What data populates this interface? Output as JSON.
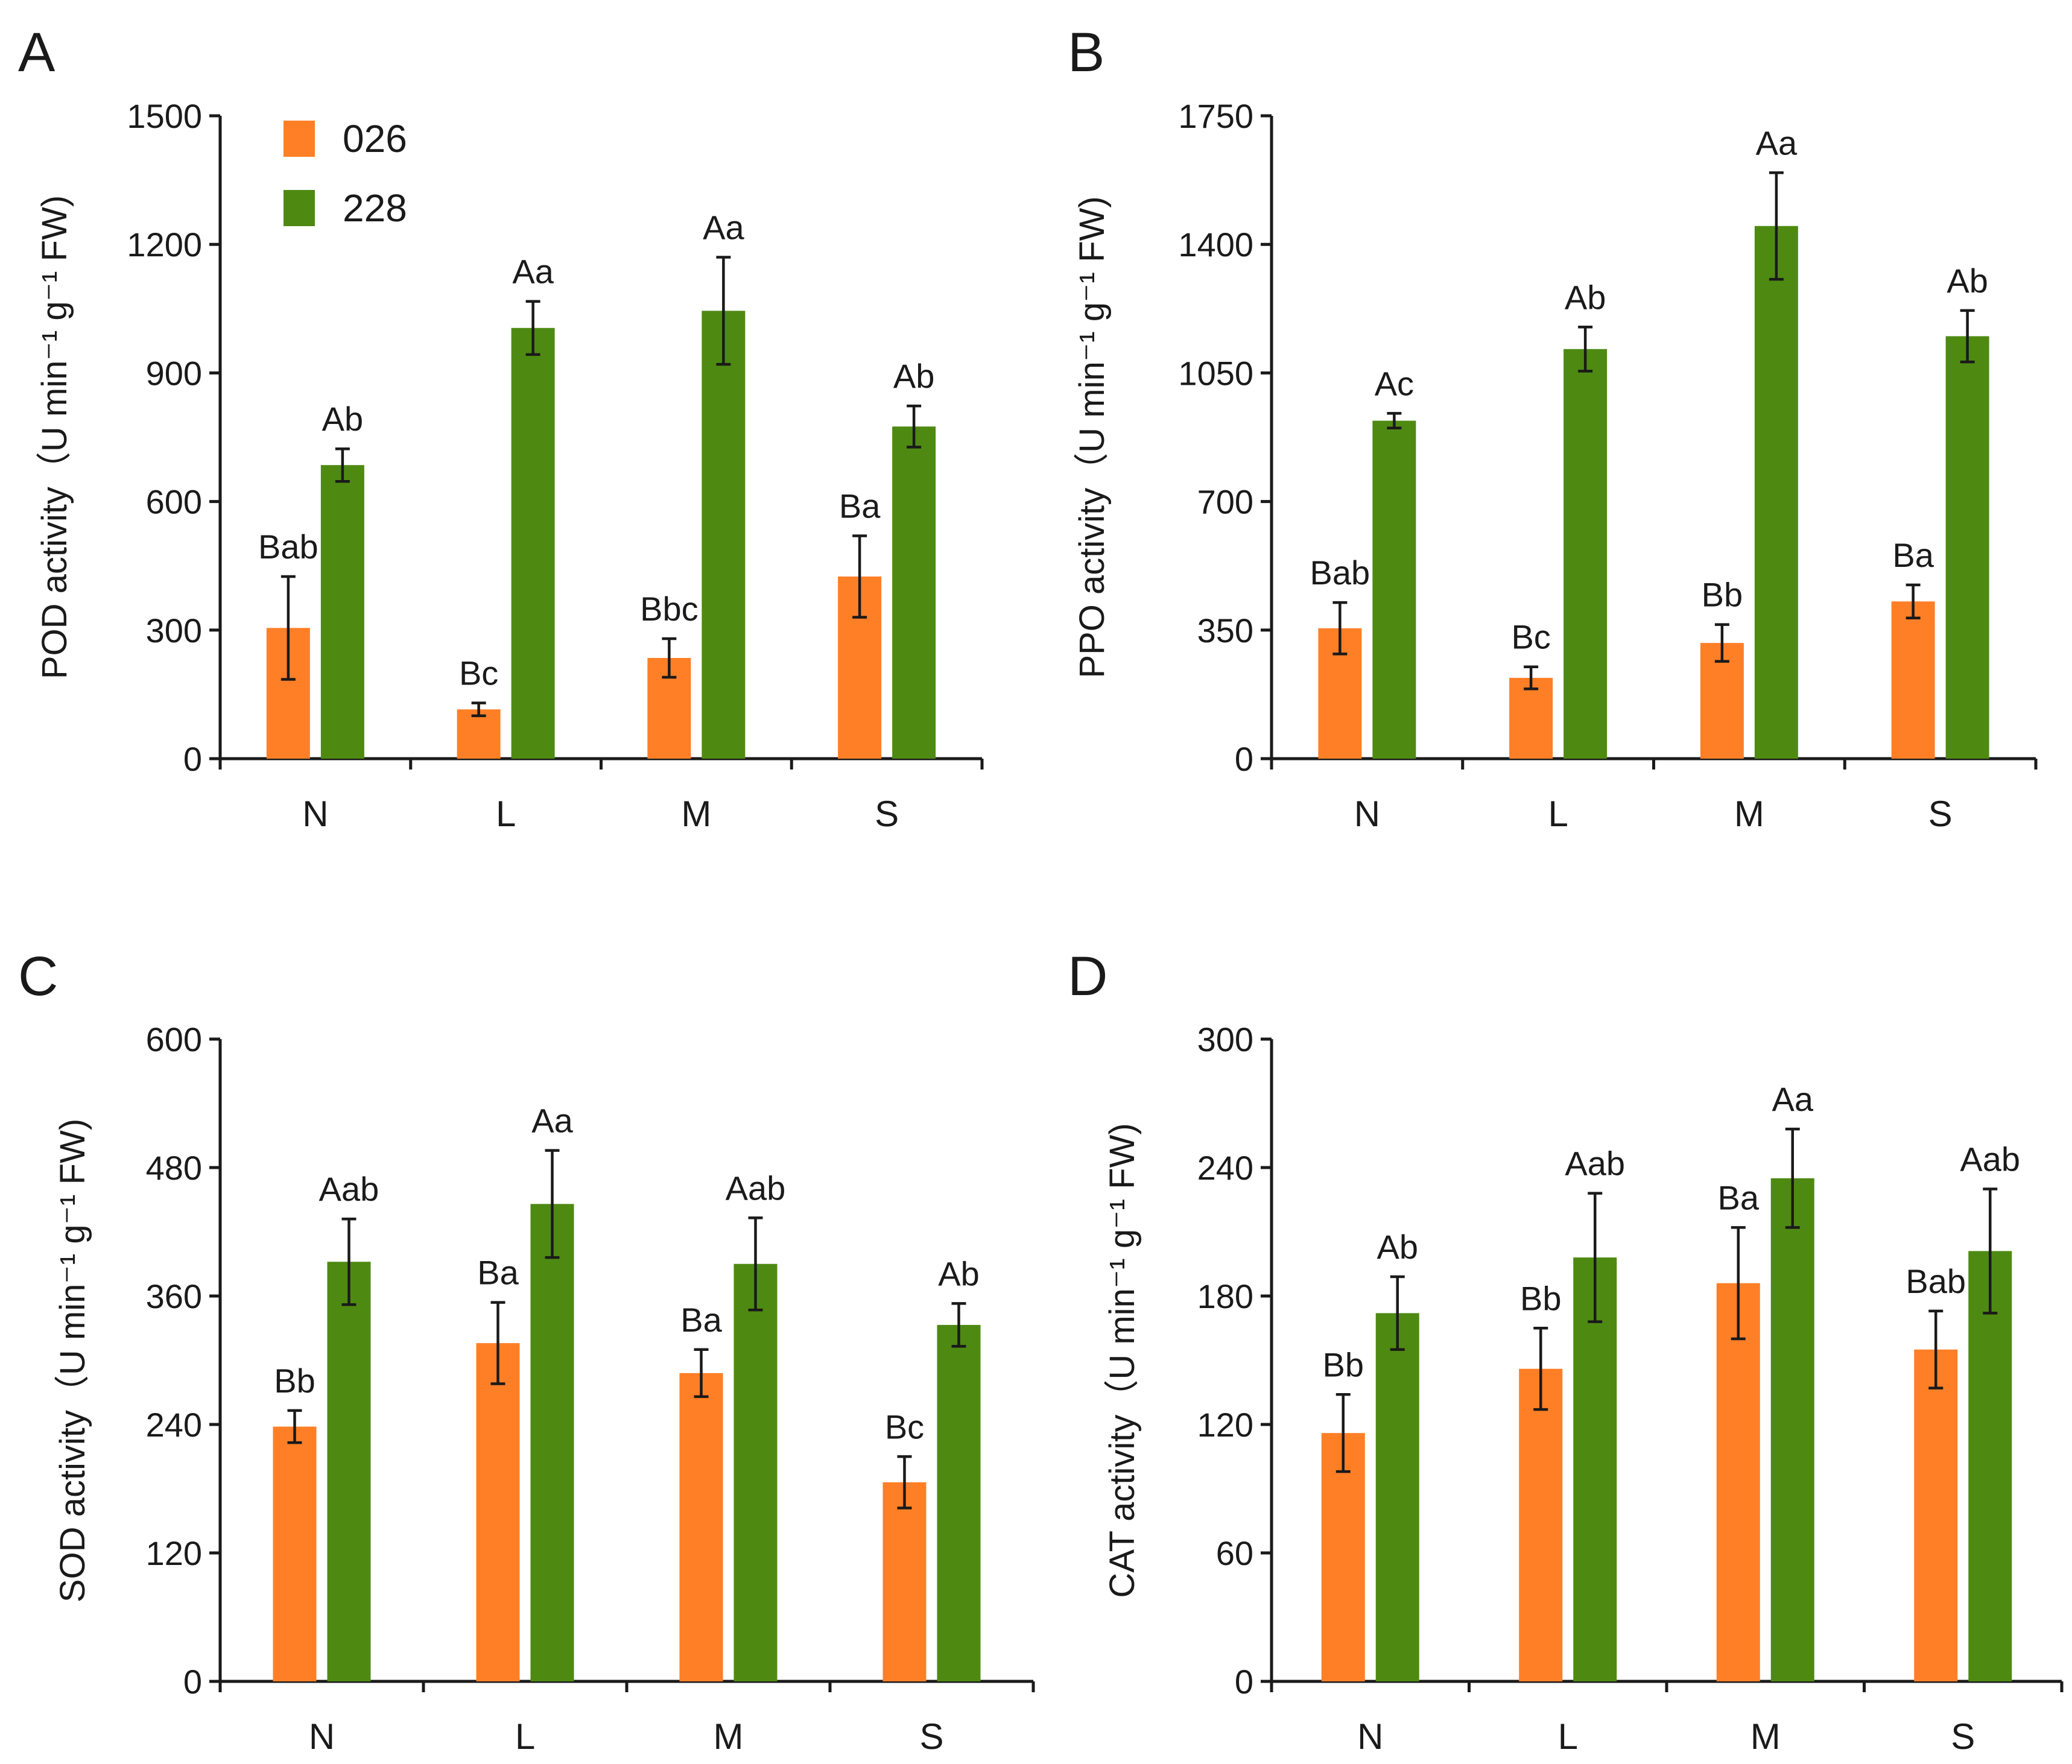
{
  "colors": {
    "026": "#FF7F27",
    "228": "#4E8A12",
    "axis": "#1a1a1a"
  },
  "legend": [
    {
      "name": "026",
      "color": "#FF7F27"
    },
    {
      "name": "228",
      "color": "#4E8A12"
    }
  ],
  "chart_data": [
    {
      "panel": "A",
      "type": "bar",
      "ylabel": "POD  activity（U min⁻¹ g⁻¹ FW)",
      "categories": [
        "N",
        "L",
        "M",
        "S"
      ],
      "ylim": [
        0,
        1500
      ],
      "yticks": [
        0,
        300,
        600,
        900,
        1200,
        1500
      ],
      "series": [
        {
          "name": "026",
          "values": [
            305,
            115,
            235,
            425
          ],
          "errors": [
            120,
            15,
            45,
            95
          ],
          "labels": [
            "Bab",
            "Bc",
            "Bbc",
            "Ba"
          ]
        },
        {
          "name": "228",
          "values": [
            685,
            1005,
            1045,
            775
          ],
          "errors": [
            38,
            62,
            125,
            48
          ],
          "labels": [
            "Ab",
            "Aa",
            "Aa",
            "Ab"
          ]
        }
      ]
    },
    {
      "panel": "B",
      "type": "bar",
      "ylabel": "PPO activity（U min⁻¹ g⁻¹ FW)",
      "categories": [
        "N",
        "L",
        "M",
        "S"
      ],
      "ylim": [
        0,
        1750
      ],
      "yticks": [
        0,
        350,
        700,
        1050,
        1400,
        1750
      ],
      "series": [
        {
          "name": "026",
          "values": [
            355,
            220,
            315,
            428
          ],
          "errors": [
            70,
            30,
            50,
            45
          ],
          "labels": [
            "Bab",
            "Bc",
            "Bb",
            "Ba"
          ]
        },
        {
          "name": "228",
          "values": [
            920,
            1115,
            1450,
            1150
          ],
          "errors": [
            20,
            60,
            145,
            70
          ],
          "labels": [
            "Ac",
            "Ab",
            "Aa",
            "Ab"
          ]
        }
      ]
    },
    {
      "panel": "C",
      "type": "bar",
      "ylabel": "SOD  activity（U min⁻¹ g⁻¹ FW)",
      "categories": [
        "N",
        "L",
        "M",
        "S"
      ],
      "ylim": [
        0,
        600
      ],
      "yticks": [
        0,
        120,
        240,
        360,
        480,
        600
      ],
      "series": [
        {
          "name": "026",
          "values": [
            238,
            316,
            288,
            186
          ],
          "errors": [
            15,
            38,
            22,
            24
          ],
          "labels": [
            "Bb",
            "Ba",
            "Ba",
            "Bc"
          ]
        },
        {
          "name": "228",
          "values": [
            392,
            446,
            390,
            333
          ],
          "errors": [
            40,
            50,
            43,
            20
          ],
          "labels": [
            "Aab",
            "Aa",
            "Aab",
            "Ab"
          ]
        }
      ]
    },
    {
      "panel": "D",
      "type": "bar",
      "ylabel": "CAT  activity（U min⁻¹ g⁻¹ FW)",
      "categories": [
        "N",
        "L",
        "M",
        "S"
      ],
      "ylim": [
        0,
        300
      ],
      "yticks": [
        0,
        60,
        120,
        180,
        240,
        300
      ],
      "series": [
        {
          "name": "026",
          "values": [
            116,
            146,
            186,
            155
          ],
          "errors": [
            18,
            19,
            26,
            18
          ],
          "labels": [
            "Bb",
            "Bb",
            "Ba",
            "Bab"
          ]
        },
        {
          "name": "228",
          "values": [
            172,
            198,
            235,
            201
          ],
          "errors": [
            17,
            30,
            23,
            29
          ],
          "labels": [
            "Ab",
            "Aab",
            "Aa",
            "Aab"
          ]
        }
      ]
    }
  ]
}
